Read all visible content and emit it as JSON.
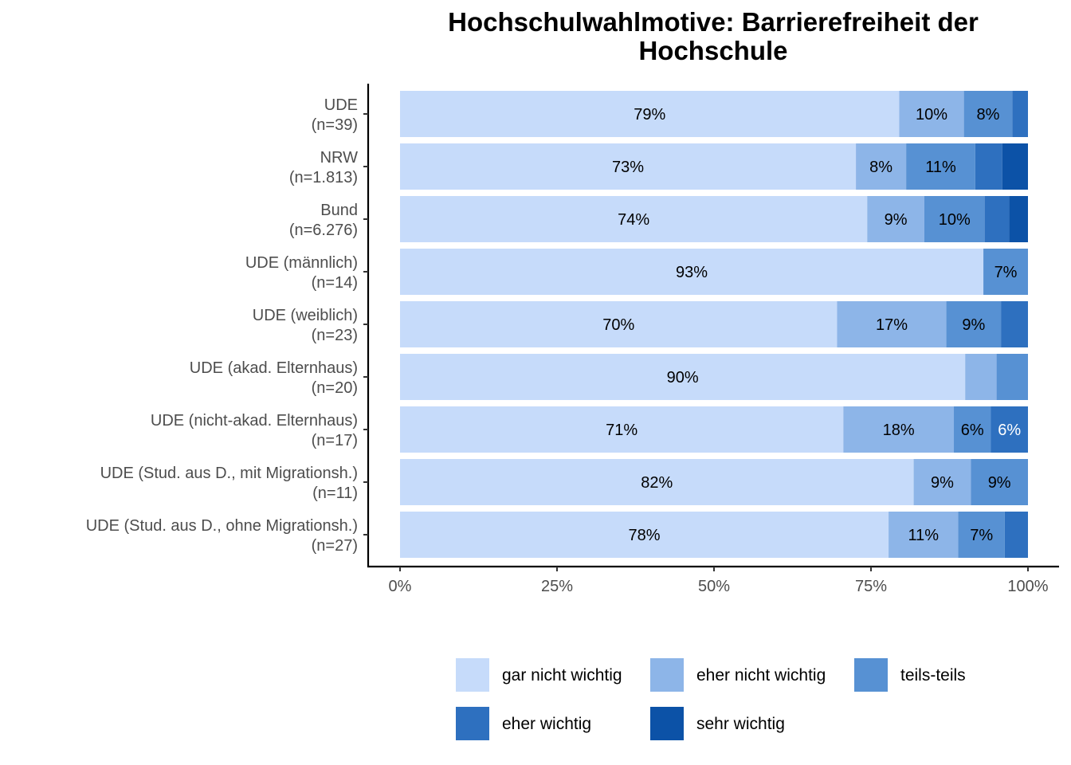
{
  "chart_data": {
    "type": "bar",
    "orientation": "horizontal",
    "stacked": true,
    "title": "Hochschulwahlmotive: Barrierefreiheit der Hochschule",
    "title_lines": [
      "Hochschulwahlmotive: Barrierefreiheit der",
      "Hochschule"
    ],
    "xlabel": "",
    "ylabel": "",
    "xlim": [
      0,
      100
    ],
    "x_ticks": [
      "0%",
      "25%",
      "50%",
      "75%",
      "100%"
    ],
    "x_tick_values": [
      0,
      25,
      50,
      75,
      100
    ],
    "grid": false,
    "legend_position": "bottom",
    "categories": [
      {
        "name": "UDE",
        "n": "(n=39)"
      },
      {
        "name": "NRW",
        "n": "(n=1.813)"
      },
      {
        "name": "Bund",
        "n": "(n=6.276)"
      },
      {
        "name": "UDE (männlich)",
        "n": "(n=14)"
      },
      {
        "name": "UDE (weiblich)",
        "n": "(n=23)"
      },
      {
        "name": "UDE (akad. Elternhaus)",
        "n": "(n=20)"
      },
      {
        "name": "UDE (nicht-akad. Elternhaus)",
        "n": "(n=17)"
      },
      {
        "name": "UDE (Stud. aus D., mit Migrationsh.)",
        "n": "(n=11)"
      },
      {
        "name": "UDE (Stud. aus D., ohne Migrationsh.)",
        "n": "(n=27)"
      }
    ],
    "series": [
      {
        "name": "gar nicht wichtig",
        "color": "#c6dbfa",
        "text_color": "#000000",
        "values": [
          79.5,
          72.6,
          74.4,
          92.9,
          69.6,
          90.0,
          70.6,
          81.8,
          77.8
        ],
        "labels": [
          "79%",
          "73%",
          "74%",
          "93%",
          "70%",
          "90%",
          "71%",
          "82%",
          "78%"
        ]
      },
      {
        "name": "eher nicht wichtig",
        "color": "#8db5e8",
        "text_color": "#000000",
        "values": [
          10.3,
          8.0,
          9.1,
          0,
          17.4,
          5.0,
          17.6,
          9.1,
          11.1
        ],
        "labels": [
          "10%",
          "8%",
          "9%",
          "",
          "17%",
          "",
          "18%",
          "9%",
          "11%"
        ]
      },
      {
        "name": "teils-teils",
        "color": "#5791d3",
        "text_color": "#000000",
        "values": [
          7.7,
          11.0,
          9.6,
          7.1,
          8.7,
          5.0,
          5.9,
          9.1,
          7.4
        ],
        "labels": [
          "8%",
          "11%",
          "10%",
          "7%",
          "9%",
          "",
          "6%",
          "9%",
          "7%"
        ]
      },
      {
        "name": "eher wichtig",
        "color": "#2e70bf",
        "text_color": "#ffffff",
        "values": [
          2.5,
          4.3,
          3.9,
          0,
          4.3,
          0,
          5.9,
          0,
          3.7
        ],
        "labels": [
          "",
          "",
          "",
          "",
          "",
          "",
          "6%",
          "",
          ""
        ]
      },
      {
        "name": "sehr wichtig",
        "color": "#0c52a7",
        "text_color": "#ffffff",
        "values": [
          0,
          4.1,
          3.0,
          0,
          0,
          0,
          0,
          0,
          0
        ],
        "labels": [
          "",
          "",
          "",
          "",
          "",
          "",
          "",
          "",
          ""
        ]
      }
    ]
  }
}
